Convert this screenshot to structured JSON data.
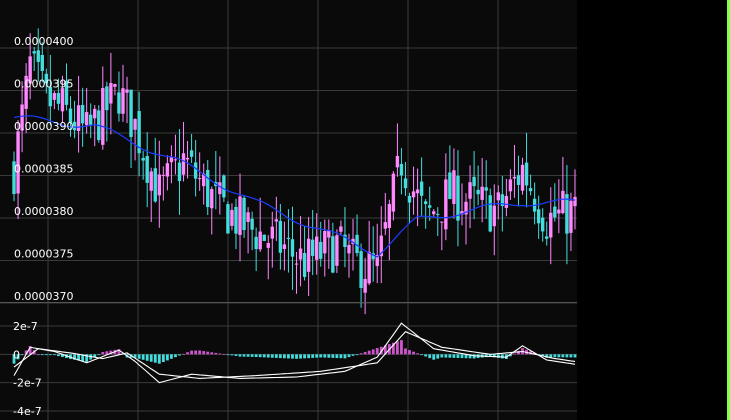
{
  "colors": {
    "background": "#000000",
    "plot_background": "#0a0a0a",
    "grid": "#3a3a3a",
    "candle_up": "#ff88ff",
    "candle_down": "#44dddd",
    "ma_line": "#1a3cff",
    "macd_line": "#ffffff",
    "signal_line": "#ffffff",
    "hist_positive": "#cc55cc",
    "hist_negative": "#44dddd",
    "right_border": "#88ff44",
    "tick_text": "#ffffff"
  },
  "chart_data": [
    {
      "type": "candlestick",
      "title": "",
      "xlabel": "",
      "ylabel": "",
      "ylim": [
        3.69e-05,
        4.01e-05
      ],
      "y_ticks": [
        "0.0000400",
        "0.0000395",
        "0.0000390",
        "0.0000385",
        "0.0000380",
        "0.0000375",
        "0.0000370"
      ],
      "grid": true,
      "candle_count": 140,
      "close_anchors": [
        [
          0,
          3.85e-05
        ],
        [
          4,
          3.97e-05
        ],
        [
          8,
          3.93e-05
        ],
        [
          12,
          3.92e-05
        ],
        [
          18,
          3.89e-05
        ],
        [
          26,
          3.94e-05
        ],
        [
          30,
          3.9e-05
        ],
        [
          36,
          3.82e-05
        ],
        [
          42,
          3.86e-05
        ],
        [
          50,
          3.81e-05
        ],
        [
          58,
          3.78e-05
        ],
        [
          66,
          3.76e-05
        ],
        [
          72,
          3.74e-05
        ],
        [
          80,
          3.76e-05
        ],
        [
          84,
          3.74e-05
        ],
        [
          90,
          3.73e-05
        ],
        [
          96,
          3.86e-05
        ],
        [
          102,
          3.79e-05
        ],
        [
          108,
          3.82e-05
        ],
        [
          114,
          3.81e-05
        ],
        [
          120,
          3.8e-05
        ],
        [
          126,
          3.85e-05
        ],
        [
          132,
          3.79e-05
        ],
        [
          139,
          3.8e-05
        ]
      ],
      "ma_anchors": [
        [
          0,
          3.91e-05
        ],
        [
          20,
          3.9e-05
        ],
        [
          40,
          3.86e-05
        ],
        [
          60,
          3.81e-05
        ],
        [
          75,
          3.78e-05
        ],
        [
          90,
          3.75e-05
        ],
        [
          100,
          3.79e-05
        ],
        [
          112,
          3.8e-05
        ],
        [
          126,
          3.81e-05
        ],
        [
          139,
          3.81e-05
        ]
      ]
    },
    {
      "type": "macd",
      "title": "",
      "xlabel": "",
      "ylabel": "",
      "ylim": [
        -4.1e-07,
        2.6e-07
      ],
      "y_ticks": [
        "2e-7",
        "0",
        "-2e-7",
        "-4e-7"
      ],
      "grid": true,
      "macd_anchors": [
        [
          0,
          -1.5e-07
        ],
        [
          4,
          5e-08
        ],
        [
          10,
          2e-08
        ],
        [
          18,
          -6e-08
        ],
        [
          26,
          3e-08
        ],
        [
          30,
          -5e-08
        ],
        [
          36,
          -2e-07
        ],
        [
          44,
          -1.4e-07
        ],
        [
          56,
          -1.7e-07
        ],
        [
          70,
          -1.6e-07
        ],
        [
          82,
          -1.2e-07
        ],
        [
          90,
          -2e-08
        ],
        [
          96,
          2.2e-07
        ],
        [
          104,
          4e-08
        ],
        [
          114,
          -1e-08
        ],
        [
          122,
          -2e-08
        ],
        [
          126,
          6e-08
        ],
        [
          132,
          -4e-08
        ],
        [
          139,
          -7e-08
        ]
      ],
      "signal_anchors": [
        [
          0,
          -9e-08
        ],
        [
          6,
          4e-08
        ],
        [
          14,
          1e-08
        ],
        [
          22,
          -3e-08
        ],
        [
          28,
          1e-08
        ],
        [
          36,
          -1.4e-07
        ],
        [
          46,
          -1.7e-07
        ],
        [
          60,
          -1.5e-07
        ],
        [
          76,
          -1.2e-07
        ],
        [
          90,
          -6e-08
        ],
        [
          97,
          1.6e-07
        ],
        [
          106,
          5e-08
        ],
        [
          118,
          0.0
        ],
        [
          126,
          2e-08
        ],
        [
          134,
          -3e-08
        ],
        [
          139,
          -5e-08
        ]
      ]
    }
  ]
}
